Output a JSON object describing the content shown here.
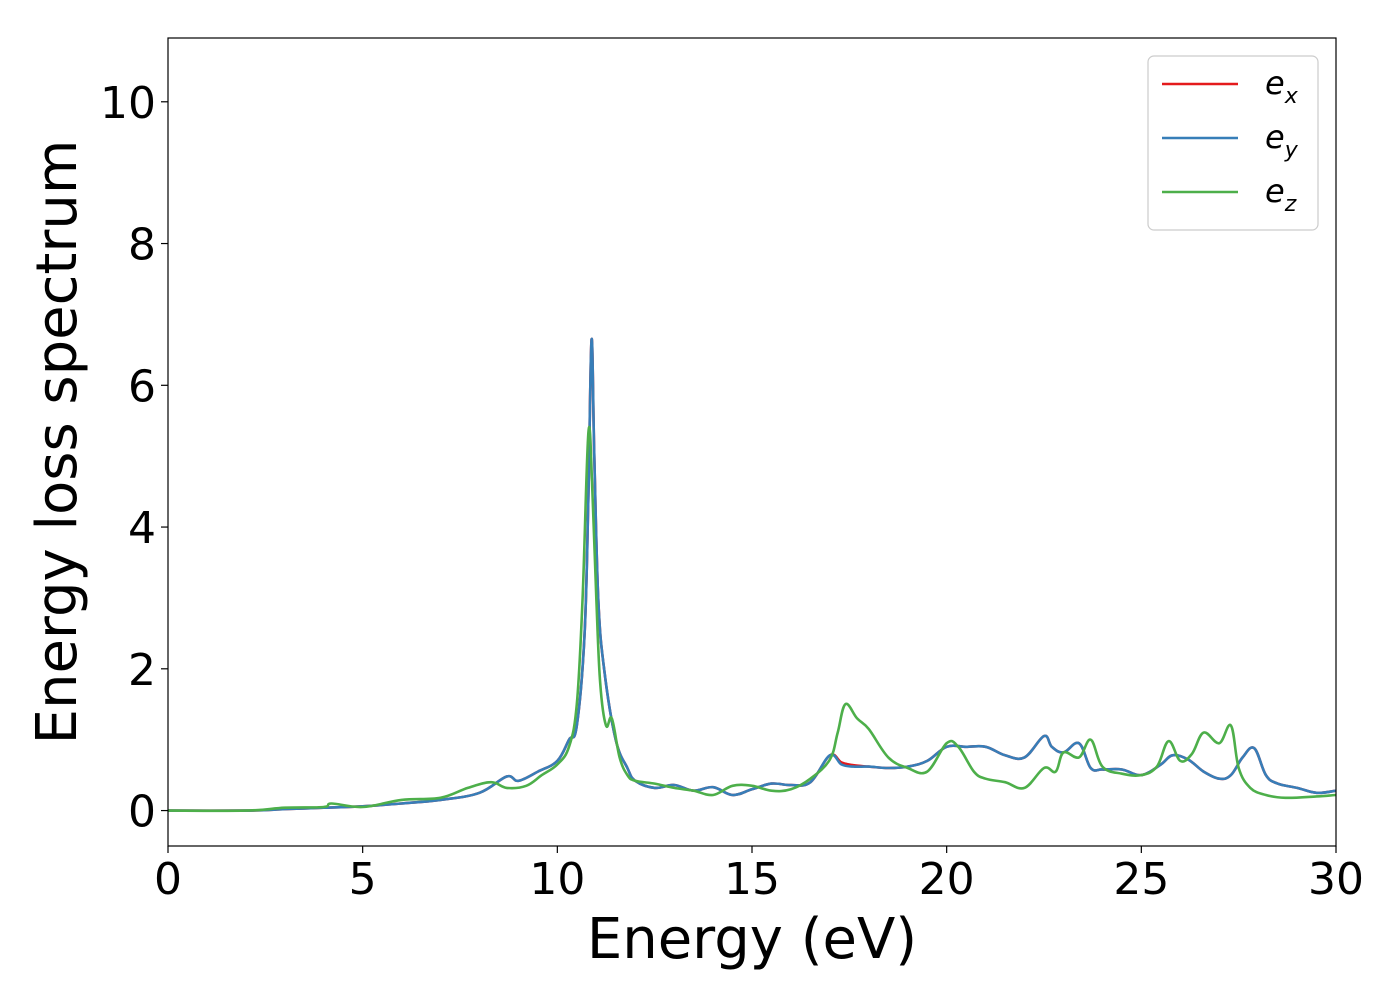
{
  "chart_data": {
    "type": "line",
    "title": "",
    "xlabel": "Energy (eV)",
    "ylabel": "Energy loss spectrum",
    "xlim": [
      0,
      30
    ],
    "ylim": [
      -0.5,
      10.9
    ],
    "xticks": [
      0,
      5,
      10,
      15,
      20,
      25,
      30
    ],
    "yticks": [
      0,
      2,
      4,
      6,
      8,
      10
    ],
    "grid": false,
    "legend_position": "top-right",
    "series": [
      {
        "name": "e_x",
        "legend_base": "e",
        "legend_sub": "x",
        "color": "#e41a1c",
        "x": [
          0,
          2,
          3,
          4,
          5,
          6,
          7,
          8,
          8.7,
          9,
          9.5,
          10,
          10.3,
          10.5,
          10.7,
          10.8,
          10.88,
          10.95,
          11.05,
          11.2,
          11.5,
          11.8,
          12,
          12.5,
          13,
          13.5,
          14,
          14.5,
          15,
          15.5,
          16,
          16.5,
          17,
          17.3,
          17.6,
          18,
          18.5,
          19,
          19.5,
          20,
          20.5,
          21,
          21.5,
          22,
          22.5,
          22.7,
          23,
          23.4,
          23.7,
          24,
          24.5,
          25,
          25.5,
          25.8,
          26.2,
          26.6,
          27,
          27.3,
          27.6,
          27.9,
          28.2,
          28.5,
          29,
          29.5,
          30
        ],
        "values": [
          0,
          0,
          0.02,
          0.04,
          0.06,
          0.1,
          0.15,
          0.25,
          0.48,
          0.42,
          0.55,
          0.7,
          1.0,
          1.2,
          2.5,
          4.5,
          6.65,
          5.0,
          3.0,
          2.0,
          1.0,
          0.6,
          0.42,
          0.32,
          0.36,
          0.28,
          0.33,
          0.22,
          0.3,
          0.38,
          0.36,
          0.4,
          0.78,
          0.68,
          0.64,
          0.62,
          0.6,
          0.62,
          0.7,
          0.9,
          0.9,
          0.9,
          0.78,
          0.75,
          1.05,
          0.9,
          0.82,
          0.95,
          0.6,
          0.58,
          0.58,
          0.5,
          0.65,
          0.78,
          0.72,
          0.55,
          0.45,
          0.5,
          0.75,
          0.88,
          0.5,
          0.38,
          0.32,
          0.25,
          0.28
        ]
      },
      {
        "name": "e_y",
        "legend_base": "e",
        "legend_sub": "y",
        "color": "#377eb8",
        "x": [
          0,
          2,
          3,
          4,
          5,
          6,
          7,
          8,
          8.7,
          9,
          9.5,
          10,
          10.3,
          10.5,
          10.7,
          10.8,
          10.88,
          10.95,
          11.05,
          11.2,
          11.5,
          11.8,
          12,
          12.5,
          13,
          13.5,
          14,
          14.5,
          15,
          15.5,
          16,
          16.5,
          17,
          17.3,
          17.6,
          18,
          18.5,
          19,
          19.5,
          20,
          20.5,
          21,
          21.5,
          22,
          22.5,
          22.7,
          23,
          23.4,
          23.7,
          24,
          24.5,
          25,
          25.5,
          25.8,
          26.2,
          26.6,
          27,
          27.3,
          27.6,
          27.9,
          28.2,
          28.5,
          29,
          29.5,
          30
        ],
        "values": [
          0,
          0,
          0.02,
          0.04,
          0.06,
          0.1,
          0.15,
          0.25,
          0.48,
          0.42,
          0.55,
          0.7,
          1.0,
          1.2,
          2.5,
          4.5,
          6.65,
          5.0,
          3.0,
          2.0,
          1.0,
          0.6,
          0.42,
          0.32,
          0.36,
          0.28,
          0.33,
          0.22,
          0.3,
          0.38,
          0.36,
          0.4,
          0.78,
          0.65,
          0.62,
          0.62,
          0.6,
          0.62,
          0.7,
          0.9,
          0.9,
          0.9,
          0.78,
          0.75,
          1.05,
          0.9,
          0.82,
          0.95,
          0.6,
          0.58,
          0.58,
          0.5,
          0.65,
          0.78,
          0.72,
          0.55,
          0.45,
          0.5,
          0.75,
          0.88,
          0.5,
          0.38,
          0.32,
          0.25,
          0.28
        ]
      },
      {
        "name": "e_z",
        "legend_base": "e",
        "legend_sub": "z",
        "color": "#4daf4a",
        "x": [
          0,
          2,
          3,
          4,
          4.2,
          5,
          6,
          7,
          7.7,
          8.3,
          8.7,
          9.2,
          9.6,
          10,
          10.3,
          10.5,
          10.65,
          10.8,
          10.9,
          11.0,
          11.1,
          11.25,
          11.4,
          11.6,
          11.8,
          12,
          12.5,
          13,
          13.5,
          14,
          14.5,
          15,
          15.5,
          16,
          16.5,
          17,
          17.2,
          17.4,
          17.7,
          18,
          18.5,
          19,
          19.5,
          20,
          20.3,
          20.7,
          21,
          21.5,
          22,
          22.5,
          22.8,
          23,
          23.4,
          23.7,
          24,
          24.5,
          25,
          25.4,
          25.7,
          26,
          26.3,
          26.6,
          27,
          27.3,
          27.5,
          27.8,
          28.2,
          28.7,
          29.5,
          30
        ],
        "values": [
          0,
          0,
          0.04,
          0.05,
          0.1,
          0.05,
          0.15,
          0.18,
          0.32,
          0.4,
          0.32,
          0.35,
          0.5,
          0.65,
          0.9,
          1.5,
          3.0,
          5.35,
          4.5,
          3.0,
          1.8,
          1.2,
          1.3,
          0.75,
          0.5,
          0.42,
          0.38,
          0.32,
          0.28,
          0.22,
          0.35,
          0.35,
          0.28,
          0.3,
          0.45,
          0.72,
          1.1,
          1.5,
          1.3,
          1.15,
          0.75,
          0.6,
          0.55,
          0.95,
          0.9,
          0.55,
          0.45,
          0.4,
          0.32,
          0.6,
          0.55,
          0.82,
          0.75,
          1.0,
          0.62,
          0.52,
          0.5,
          0.62,
          0.98,
          0.7,
          0.8,
          1.1,
          0.95,
          1.2,
          0.6,
          0.32,
          0.22,
          0.18,
          0.2,
          0.22
        ]
      }
    ]
  }
}
